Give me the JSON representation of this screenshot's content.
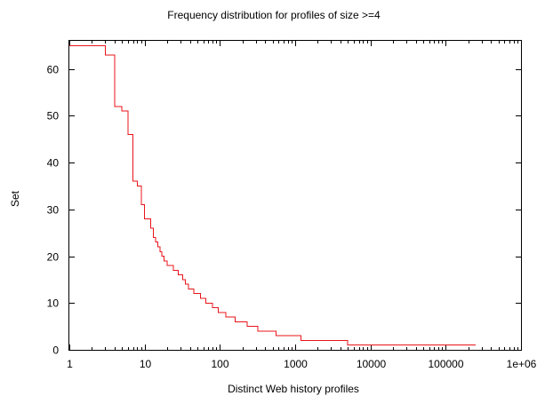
{
  "chart_data": {
    "type": "line",
    "title": "Frequency distribution for profiles of size >=4",
    "xlabel": "Distinct Web history profiles",
    "ylabel": "Set",
    "xscale": "log",
    "xlim": [
      1,
      1000000
    ],
    "ylim": [
      0,
      66
    ],
    "grid": false,
    "legend": "none",
    "series_color": "#e8141a",
    "x_ticks": [
      {
        "value": 1,
        "label": "1"
      },
      {
        "value": 10,
        "label": "10"
      },
      {
        "value": 100,
        "label": "100"
      },
      {
        "value": 1000,
        "label": "1000"
      },
      {
        "value": 10000,
        "label": "10000"
      },
      {
        "value": 100000,
        "label": "100000"
      },
      {
        "value": 1000000,
        "label": "1e+06"
      }
    ],
    "y_ticks": [
      {
        "value": 0,
        "label": "0"
      },
      {
        "value": 10,
        "label": "10"
      },
      {
        "value": 20,
        "label": "20"
      },
      {
        "value": 30,
        "label": "30"
      },
      {
        "value": 40,
        "label": "40"
      },
      {
        "value": 50,
        "label": "50"
      },
      {
        "value": 60,
        "label": "60"
      }
    ],
    "series": [
      {
        "step": "post",
        "points": [
          [
            1,
            65
          ],
          [
            3,
            63
          ],
          [
            4,
            52
          ],
          [
            5,
            51
          ],
          [
            6,
            46
          ],
          [
            7,
            36
          ],
          [
            8,
            35
          ],
          [
            9,
            31
          ],
          [
            10,
            28
          ],
          [
            12,
            26
          ],
          [
            13,
            24
          ],
          [
            14,
            23
          ],
          [
            15,
            22
          ],
          [
            16,
            21
          ],
          [
            17,
            20
          ],
          [
            18,
            19
          ],
          [
            20,
            18
          ],
          [
            24,
            17
          ],
          [
            28,
            16
          ],
          [
            32,
            15
          ],
          [
            35,
            14
          ],
          [
            38,
            13
          ],
          [
            45,
            12
          ],
          [
            55,
            11
          ],
          [
            65,
            10
          ],
          [
            80,
            9
          ],
          [
            95,
            8
          ],
          [
            120,
            7
          ],
          [
            160,
            6
          ],
          [
            230,
            5
          ],
          [
            320,
            4
          ],
          [
            560,
            3
          ],
          [
            1200,
            2
          ],
          [
            5000,
            1
          ],
          [
            250000,
            1
          ]
        ]
      }
    ]
  }
}
